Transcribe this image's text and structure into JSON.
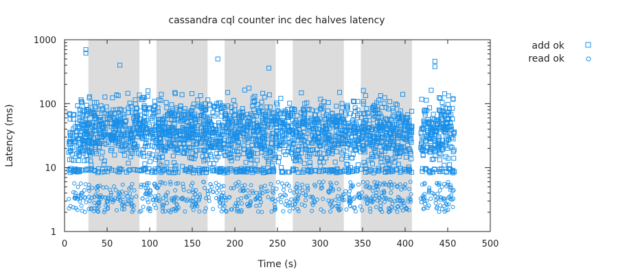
{
  "chart_data": {
    "type": "scatter",
    "title": "cassandra cql counter inc dec halves latency",
    "xlabel": "Time (s)",
    "ylabel": "Latency (ms)",
    "xlim": [
      0,
      500
    ],
    "ylim": [
      1,
      1000
    ],
    "yscale": "log",
    "x_ticks": [
      0,
      50,
      100,
      150,
      200,
      250,
      300,
      350,
      400,
      450,
      500
    ],
    "y_ticks": [
      1,
      10,
      100,
      1000
    ],
    "y_tick_labels": [
      "1",
      "10",
      "100",
      "1000"
    ],
    "grid": false,
    "legend_position": "top-right outside plot",
    "shaded_intervals": [
      [
        28,
        88
      ],
      [
        108,
        168
      ],
      [
        188,
        248
      ],
      [
        268,
        328
      ],
      [
        348,
        408
      ]
    ],
    "series": [
      {
        "name": "add ok",
        "marker": "square",
        "color": "#1a8fe8",
        "time_range": [
          5,
          458
        ],
        "gap": [
          408,
          418
        ],
        "typical_latency_range": [
          7,
          200
        ],
        "dense_band": 9,
        "spikes": [
          [
            25,
            700
          ],
          [
            25,
            620
          ],
          [
            180,
            500
          ],
          [
            65,
            400
          ],
          [
            240,
            360
          ],
          [
            435,
            460
          ],
          [
            435,
            380
          ]
        ]
      },
      {
        "name": "read ok",
        "marker": "circle",
        "color": "#1a8fe8",
        "time_range": [
          5,
          458
        ],
        "gap": [
          408,
          418
        ],
        "typical_latency_range": [
          2,
          6
        ],
        "dense_band": 3.2
      }
    ]
  }
}
